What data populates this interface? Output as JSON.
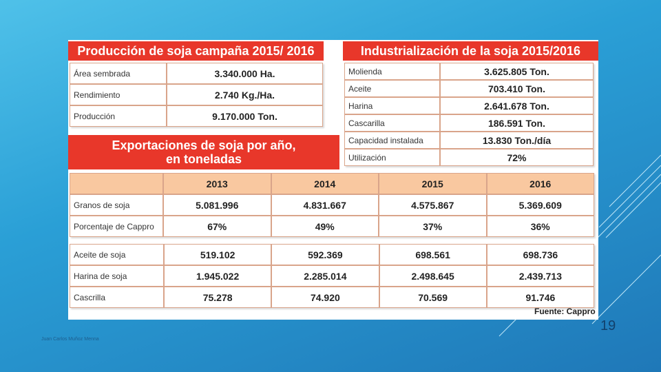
{
  "production": {
    "title": "Producción de soja campaña 2015/ 2016",
    "rows": [
      {
        "label": "Área sembrada",
        "value": "3.340.000 Ha."
      },
      {
        "label": "Rendimiento",
        "value": "2.740 Kg./Ha."
      },
      {
        "label": "Producción",
        "value": "9.170.000 Ton."
      }
    ]
  },
  "industrial": {
    "title": "Industrialización de la soja 2015/2016",
    "rows": [
      {
        "label": "Molienda",
        "value": "3.625.805 Ton."
      },
      {
        "label": "Aceite",
        "value": "703.410 Ton."
      },
      {
        "label": "Harina",
        "value": "2.641.678 Ton."
      },
      {
        "label": "Cascarilla",
        "value": "186.591 Ton."
      },
      {
        "label": "Capacidad instalada",
        "value": "13.830 Ton./día"
      },
      {
        "label": "Utilización",
        "value": "72%"
      }
    ]
  },
  "exports": {
    "title_line1": "Exportaciones de soja por año,",
    "title_line2": "en toneladas",
    "years": [
      "2013",
      "2014",
      "2015",
      "2016"
    ],
    "rows1": [
      {
        "label": "Granos de soja",
        "values": [
          "5.081.996",
          "4.831.667",
          "4.575.867",
          "5.369.609"
        ]
      },
      {
        "label": "Porcentaje de Cappro",
        "values": [
          "67%",
          "49%",
          "37%",
          "36%"
        ]
      }
    ],
    "rows2": [
      {
        "label": "Aceite de soja",
        "values": [
          "519.102",
          "592.369",
          "698.561",
          "698.736"
        ]
      },
      {
        "label": "Harina de soja",
        "values": [
          "1.945.022",
          "2.285.014",
          "2.498.645",
          "2.439.713"
        ]
      },
      {
        "label": "Cascrilla",
        "values": [
          "75.278",
          "74.920",
          "70.569",
          "91.746"
        ]
      }
    ]
  },
  "source": "Fuente: Cappro",
  "slide_number": "19",
  "author": "Juan Carlos Muñoz Menna"
}
